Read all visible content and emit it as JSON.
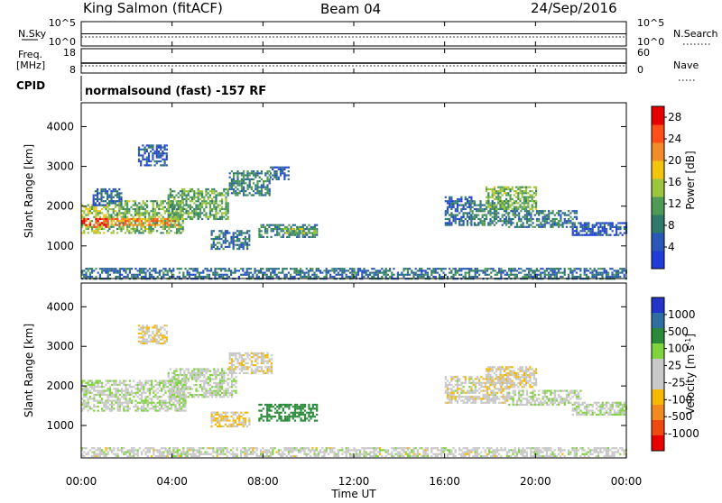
{
  "header": {
    "station": "King Salmon (fitACF)",
    "beam": "Beam 04",
    "date": "24/Sep/2016"
  },
  "top_panels": {
    "nsky_label": "N.Sky",
    "nsky_ticks": [
      "10^5",
      "10^0"
    ],
    "nsearch_label": "N.Search",
    "nsearch_ticks": [
      "10^5",
      "10^0"
    ],
    "freq_label": "Freq.",
    "freq_unit": "[MHz]",
    "freq_ticks": [
      "18",
      "8"
    ],
    "nave_label": "Nave",
    "nave_ticks": [
      "60",
      "0"
    ],
    "cpid_label": "CPID",
    "cpid_text": "normalsound (fast) -157 RF"
  },
  "x_axis": {
    "title": "Time UT",
    "ticks": [
      "00:00",
      "04:00",
      "08:00",
      "12:00",
      "16:00",
      "20:00",
      "00:00"
    ]
  },
  "colors": {
    "power_scale": [
      "#1f3bd8",
      "#2a57b8",
      "#2f7a6a",
      "#4e9a56",
      "#9bc53d",
      "#f2c40e",
      "#f28c28",
      "#ff4e16",
      "#e60000"
    ],
    "velocity_scale": [
      "#e80000",
      "#ee4a10",
      "#f28a20",
      "#f5b800",
      "#c8c8c8",
      "#c8c8c8",
      "#7fd33c",
      "#2a8a3a",
      "#2f6ea0",
      "#2434c8"
    ]
  },
  "chart_data": [
    {
      "type": "heatmap",
      "name": "power",
      "xlabel": "",
      "ylabel": "Slant Range [km]",
      "x_range_hours": [
        0,
        24
      ],
      "ylim": [
        180,
        4600
      ],
      "y_ticks": [
        "1000",
        "2000",
        "3000",
        "4000"
      ],
      "colorbar_label": "Power [dB]",
      "colorbar_ticks": [
        "4",
        "8",
        "12",
        "16",
        "20",
        "24",
        "28"
      ],
      "colorbar_range": [
        0,
        30
      ],
      "regions": [
        {
          "t": [
            0.0,
            1.2
          ],
          "r": [
            1350,
            2050
          ],
          "v": 16
        },
        {
          "t": [
            0.0,
            1.2
          ],
          "r": [
            1500,
            1700
          ],
          "v": 26
        },
        {
          "t": [
            1.2,
            4.5
          ],
          "r": [
            1350,
            2150
          ],
          "v": 13
        },
        {
          "t": [
            1.3,
            4.2
          ],
          "r": [
            1550,
            1700
          ],
          "v": 22
        },
        {
          "t": [
            3.8,
            6.5
          ],
          "r": [
            1700,
            2450
          ],
          "v": 12
        },
        {
          "t": [
            6.5,
            8.3
          ],
          "r": [
            2300,
            2900
          ],
          "v": 9
        },
        {
          "t": [
            8.3,
            9.1
          ],
          "r": [
            2700,
            3000
          ],
          "v": 6
        },
        {
          "t": [
            0.5,
            1.8
          ],
          "r": [
            2050,
            2450
          ],
          "v": 6
        },
        {
          "t": [
            2.5,
            3.8
          ],
          "r": [
            3050,
            3550
          ],
          "v": 5
        },
        {
          "t": [
            5.7,
            7.4
          ],
          "r": [
            950,
            1400
          ],
          "v": 7
        },
        {
          "t": [
            7.8,
            10.4
          ],
          "r": [
            1250,
            1550
          ],
          "v": 9
        },
        {
          "t": [
            8.9,
            10.3
          ],
          "r": [
            1350,
            1450
          ],
          "v": 15
        },
        {
          "t": [
            0.0,
            24.0
          ],
          "r": [
            200,
            450
          ],
          "v": 7
        },
        {
          "t": [
            16.0,
            17.2
          ],
          "r": [
            1550,
            2250
          ],
          "v": 6
        },
        {
          "t": [
            17.1,
            18.8
          ],
          "r": [
            1550,
            2150
          ],
          "v": 9
        },
        {
          "t": [
            17.8,
            20.0
          ],
          "r": [
            1950,
            2500
          ],
          "v": 13
        },
        {
          "t": [
            18.8,
            21.8
          ],
          "r": [
            1500,
            1900
          ],
          "v": 8
        },
        {
          "t": [
            21.6,
            24.0
          ],
          "r": [
            1280,
            1600
          ],
          "v": 5
        }
      ]
    },
    {
      "type": "heatmap",
      "name": "velocity",
      "xlabel": "Time UT",
      "ylabel": "Slant Range [km]",
      "x_range_hours": [
        0,
        24
      ],
      "ylim": [
        180,
        4600
      ],
      "y_ticks": [
        "1000",
        "2000",
        "3000",
        "4000"
      ],
      "colorbar_label": "Velocity [m s^-1]",
      "colorbar_ticks": [
        "1000",
        "500",
        "100",
        "25",
        "-25",
        "-100",
        "-500",
        "-1000"
      ],
      "regions": [
        {
          "t": [
            0.0,
            4.6
          ],
          "r": [
            1350,
            2150
          ],
          "v": 0
        },
        {
          "t": [
            3.8,
            6.8
          ],
          "r": [
            1700,
            2450
          ],
          "v": 0
        },
        {
          "t": [
            6.5,
            8.4
          ],
          "r": [
            2300,
            2850
          ],
          "v": -60
        },
        {
          "t": [
            2.5,
            3.8
          ],
          "r": [
            3050,
            3550
          ],
          "v": -80
        },
        {
          "t": [
            5.7,
            7.4
          ],
          "r": [
            950,
            1350
          ],
          "v": -120
        },
        {
          "t": [
            7.8,
            10.4
          ],
          "r": [
            1100,
            1550
          ],
          "v": 180
        },
        {
          "t": [
            0.0,
            24.0
          ],
          "r": [
            200,
            450
          ],
          "v": -30
        },
        {
          "t": [
            16.0,
            18.8
          ],
          "r": [
            1550,
            2250
          ],
          "v": -50
        },
        {
          "t": [
            17.8,
            20.0
          ],
          "r": [
            1950,
            2500
          ],
          "v": -80
        },
        {
          "t": [
            18.8,
            22.0
          ],
          "r": [
            1500,
            1900
          ],
          "v": 0
        },
        {
          "t": [
            21.6,
            24.0
          ],
          "r": [
            1280,
            1600
          ],
          "v": 0
        }
      ]
    }
  ]
}
